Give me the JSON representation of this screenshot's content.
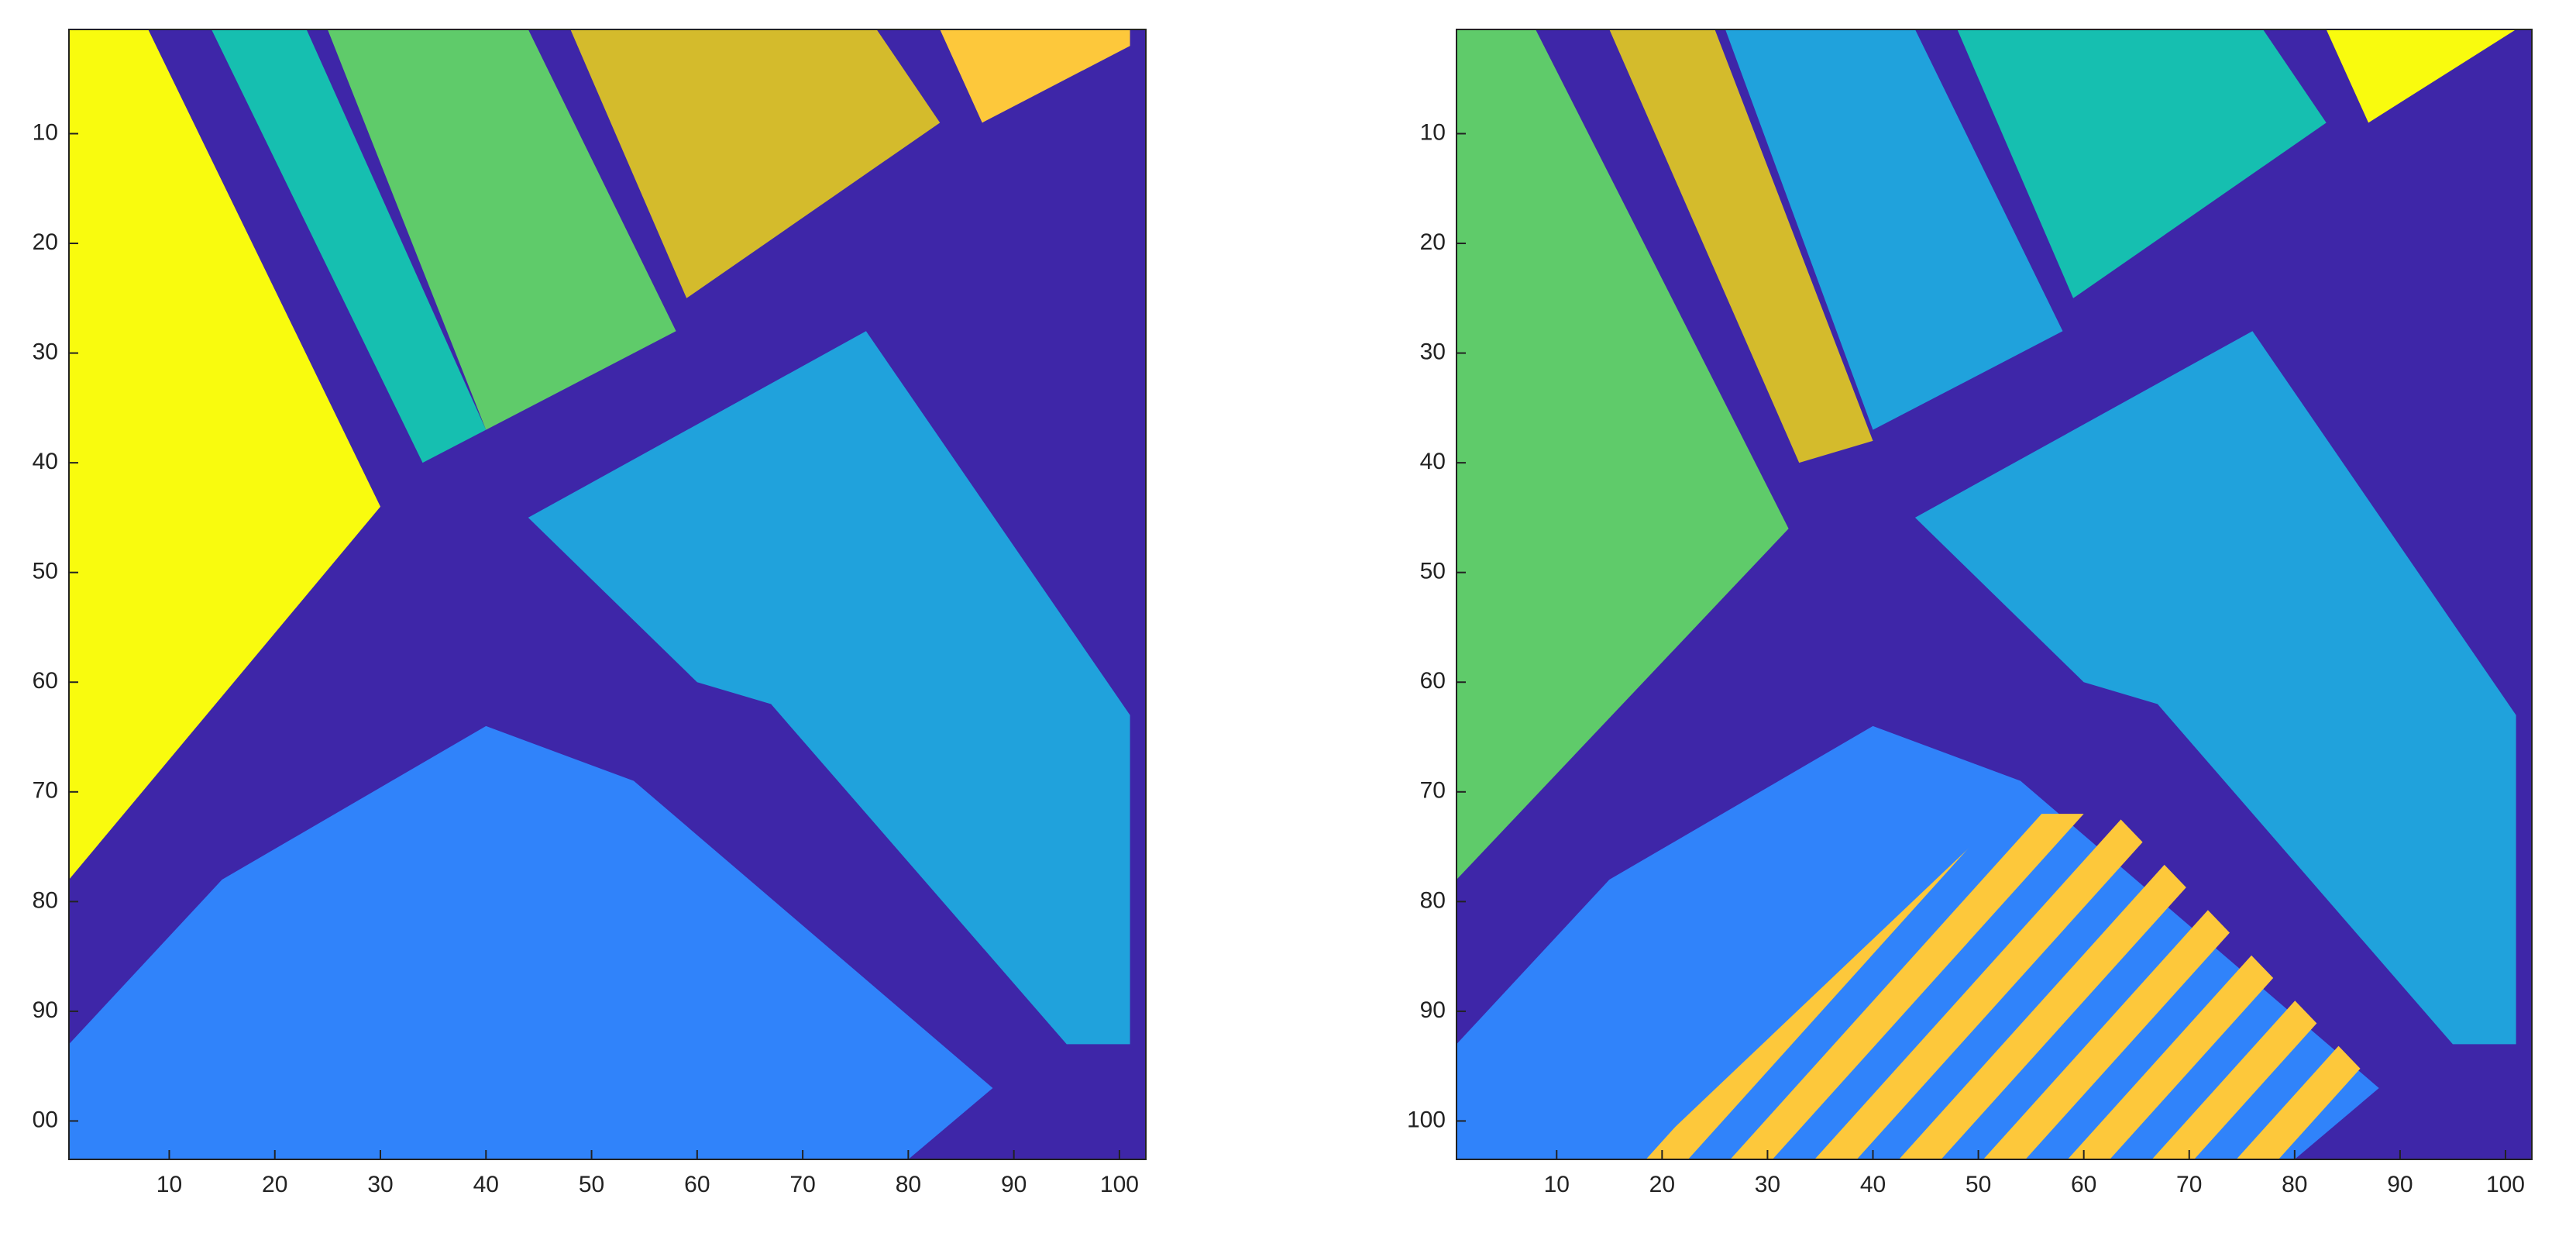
{
  "chart_data": [
    {
      "type": "image",
      "xlim": [
        0.5,
        102.5
      ],
      "ylim": [
        0.5,
        103.5
      ],
      "yreverse": true,
      "xticks": [
        10,
        20,
        30,
        40,
        50,
        60,
        70,
        80,
        90,
        100
      ],
      "yticks": [
        10,
        20,
        30,
        40,
        50,
        60,
        70,
        80,
        90,
        {
          "value": 100,
          "label": "00"
        }
      ]
    },
    {
      "type": "image",
      "xlim": [
        0.5,
        102.5
      ],
      "ylim": [
        0.5,
        103.5
      ],
      "yreverse": true,
      "xticks": [
        10,
        20,
        30,
        40,
        50,
        60,
        70,
        80,
        90,
        100
      ],
      "yticks": [
        10,
        20,
        30,
        40,
        50,
        60,
        70,
        80,
        90,
        100
      ]
    }
  ]
}
